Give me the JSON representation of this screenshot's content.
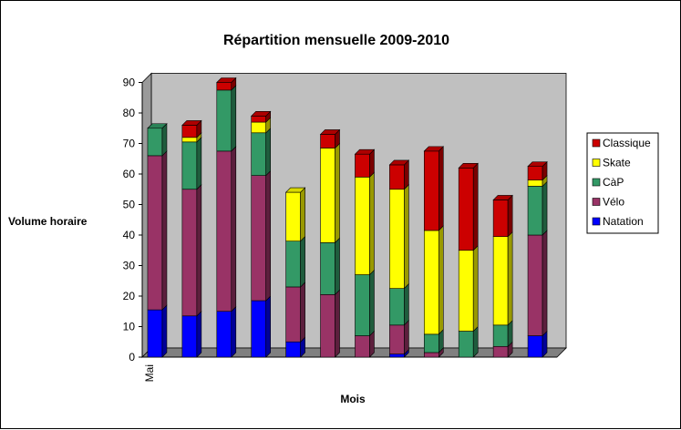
{
  "chart_data": {
    "type": "bar",
    "stacked": true,
    "three_d": true,
    "title": "Répartition mensuelle 2009-2010",
    "xlabel": "Mois",
    "ylabel": "Volume horaire",
    "ylim": [
      0,
      90
    ],
    "y_ticks": [
      "0",
      "10",
      "20",
      "30",
      "40",
      "50",
      "60",
      "70",
      "80",
      "90"
    ],
    "x_tick_labels": [
      "Mai",
      "",
      "",
      "",
      "",
      "",
      "",
      "",
      "",
      "",
      "",
      ""
    ],
    "legend_position": "right",
    "grid": false,
    "plot_background": "#c0c0c0",
    "series": [
      {
        "name": "Natation",
        "color": "#0000ff",
        "values": [
          15.5,
          13.5,
          15,
          18.5,
          5,
          0,
          0,
          1,
          0,
          0,
          0,
          7
        ]
      },
      {
        "name": "Vélo",
        "color": "#993366",
        "values": [
          50.5,
          41.5,
          52.5,
          41,
          18,
          20.5,
          7,
          9.5,
          1.5,
          0,
          3.5,
          33
        ]
      },
      {
        "name": "CàP",
        "color": "#339966",
        "values": [
          9,
          15.5,
          20,
          14,
          15,
          17,
          20,
          12,
          6,
          8.5,
          7,
          16
        ]
      },
      {
        "name": "Skate",
        "color": "#ffff00",
        "values": [
          0,
          1.5,
          0,
          3.5,
          16,
          31,
          32,
          32.5,
          34,
          26.5,
          29,
          2
        ]
      },
      {
        "name": "Classique",
        "color": "#cc0000",
        "values": [
          0,
          4,
          2.5,
          2,
          0,
          4.5,
          7.5,
          8,
          26,
          27,
          12,
          4.5
        ]
      }
    ]
  }
}
